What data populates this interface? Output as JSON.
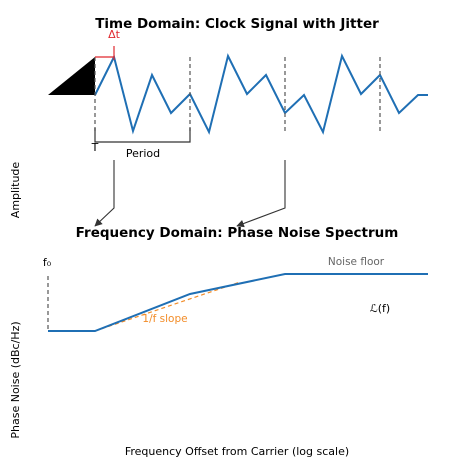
{
  "time_domain": {
    "title": "Time Domain: Clock Signal with Jitter",
    "jitter_label": "Δt",
    "period_start_label": "T",
    "period_label": "Period",
    "y_label": "Amplitude"
  },
  "freq_domain": {
    "title": "Frequency Domain: Phase Noise Spectrum",
    "carrier_label": "f₀",
    "noise_floor_label": "Noise floor",
    "slope_label": "1/f slope",
    "curve_label": "ℒ(f)",
    "y_label": "Phase Noise (dBc/Hz)",
    "x_label": "Frequency Offset from Carrier (log scale)"
  },
  "colors": {
    "signal": "#1f6fb4",
    "jitter": "#e0282e",
    "slope": "#f28c28",
    "noise_floor_text": "#666666",
    "guide": "#555555"
  }
}
